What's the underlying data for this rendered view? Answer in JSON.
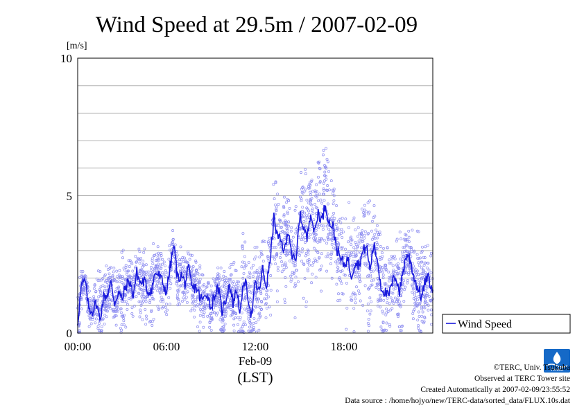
{
  "chart_data": {
    "type": "scatter",
    "title": "Wind Speed at 29.5m / 2007-02-09",
    "ylabel": "[m/s]",
    "ylim": [
      0,
      10
    ],
    "yticks": [
      "0",
      "5",
      "10"
    ],
    "xlim_hours": [
      0,
      24
    ],
    "xticks": [
      "00:00",
      "06:00",
      "12:00",
      "18:00"
    ],
    "xdate_label": "Feb-09",
    "xaxis_label": "(LST)",
    "grid": true,
    "legend_position": "right-bottom",
    "series": [
      {
        "name": "Wind Speed",
        "line_color": "#1a1adc",
        "scatter_color": "#8c8cf0",
        "note": "10-second samples shown as hollow circles; line is running mean",
        "x_hours": [
          0.0,
          0.25,
          0.5,
          0.75,
          1.0,
          1.25,
          1.5,
          1.75,
          2.0,
          2.25,
          2.5,
          2.75,
          3.0,
          3.25,
          3.5,
          3.75,
          4.0,
          4.25,
          4.5,
          4.75,
          5.0,
          5.25,
          5.5,
          5.75,
          6.0,
          6.25,
          6.5,
          6.75,
          7.0,
          7.25,
          7.5,
          7.75,
          8.0,
          8.25,
          8.5,
          8.75,
          9.0,
          9.25,
          9.5,
          9.75,
          10.0,
          10.25,
          10.5,
          10.75,
          11.0,
          11.25,
          11.5,
          11.75,
          12.0,
          12.25,
          12.5,
          12.75,
          13.0,
          13.25,
          13.5,
          13.75,
          14.0,
          14.25,
          14.5,
          14.75,
          15.0,
          15.25,
          15.5,
          15.75,
          16.0,
          16.25,
          16.5,
          16.75,
          17.0,
          17.25,
          17.5,
          17.75,
          18.0,
          18.25,
          18.5,
          18.75,
          19.0,
          19.25,
          19.5,
          19.75,
          20.0,
          20.25,
          20.5,
          20.75,
          21.0,
          21.25,
          21.5,
          21.75,
          22.0,
          22.25,
          22.5,
          22.75,
          23.0,
          23.25,
          23.5,
          23.75,
          24.0
        ],
        "mean_values": [
          0.4,
          1.7,
          1.9,
          0.9,
          0.8,
          1.1,
          0.5,
          1.3,
          1.4,
          1.8,
          1.1,
          1.5,
          1.2,
          1.7,
          1.9,
          1.4,
          2.2,
          1.8,
          1.9,
          1.5,
          1.6,
          2.2,
          2.1,
          1.8,
          1.5,
          2.4,
          3.2,
          2.0,
          2.1,
          1.8,
          2.3,
          1.6,
          1.7,
          1.3,
          1.2,
          1.5,
          0.9,
          1.4,
          1.6,
          0.8,
          1.2,
          1.8,
          1.1,
          1.6,
          0.7,
          2.0,
          1.4,
          0.6,
          1.8,
          1.5,
          2.3,
          1.7,
          2.6,
          4.2,
          3.5,
          3.3,
          3.0,
          3.8,
          2.8,
          2.5,
          4.3,
          3.9,
          3.4,
          4.5,
          3.6,
          4.4,
          4.1,
          4.7,
          4.0,
          3.9,
          3.1,
          2.7,
          2.5,
          2.7,
          2.1,
          2.6,
          2.5,
          2.9,
          3.2,
          2.3,
          3.2,
          2.7,
          1.7,
          1.5,
          1.3,
          1.8,
          2.1,
          1.5,
          2.3,
          2.9,
          2.6,
          2.0,
          1.6,
          1.3,
          1.9,
          2.0,
          1.3,
          1.7,
          1.5
        ],
        "max_values": [
          2.4,
          2.5,
          2.2,
          1.6,
          1.3,
          2.7,
          2.8,
          2.1,
          2.6,
          2.6,
          2.6,
          2.5,
          3.1,
          3.0,
          2.7,
          2.6,
          3.1,
          3.2,
          3.4,
          2.7,
          3.3,
          3.4,
          3.4,
          3.1,
          2.6,
          3.8,
          3.7,
          3.1,
          3.2,
          3.2,
          3.1,
          3.0,
          2.9,
          2.6,
          2.2,
          2.4,
          2.4,
          2.5,
          2.6,
          2.4,
          2.4,
          2.5,
          2.7,
          2.5,
          2.6,
          4.1,
          2.7,
          2.9,
          3.3,
          3.3,
          3.5,
          3.3,
          5.1,
          6.0,
          5.8,
          4.6,
          5.2,
          5.0,
          4.4,
          4.6,
          5.9,
          6.1,
          6.0,
          6.5,
          5.5,
          6.9,
          6.7,
          7.1,
          5.9,
          5.6,
          4.6,
          4.7,
          4.2,
          5.2,
          4.3,
          4.3,
          4.4,
          5.3,
          5.5,
          5.2,
          4.8,
          4.2,
          3.6,
          3.9,
          3.4,
          3.0,
          3.8,
          3.8,
          3.9,
          4.0,
          3.8,
          3.8,
          3.8,
          3.2,
          3.4,
          3.4,
          2.9,
          2.5,
          2.0
        ]
      }
    ]
  },
  "legend": {
    "label": "Wind Speed"
  },
  "credits": {
    "copyright": "©TERC, Univ. Tsukuba",
    "observed": "Observed at TERC Tower site",
    "created": "Created Automatically at 2007-02-09/23:55:52",
    "source": "Data source : /home/hojyo/new/TERC-data/sorted_data/FLUX.10s.dat"
  },
  "logo": {
    "text": "TERC"
  }
}
